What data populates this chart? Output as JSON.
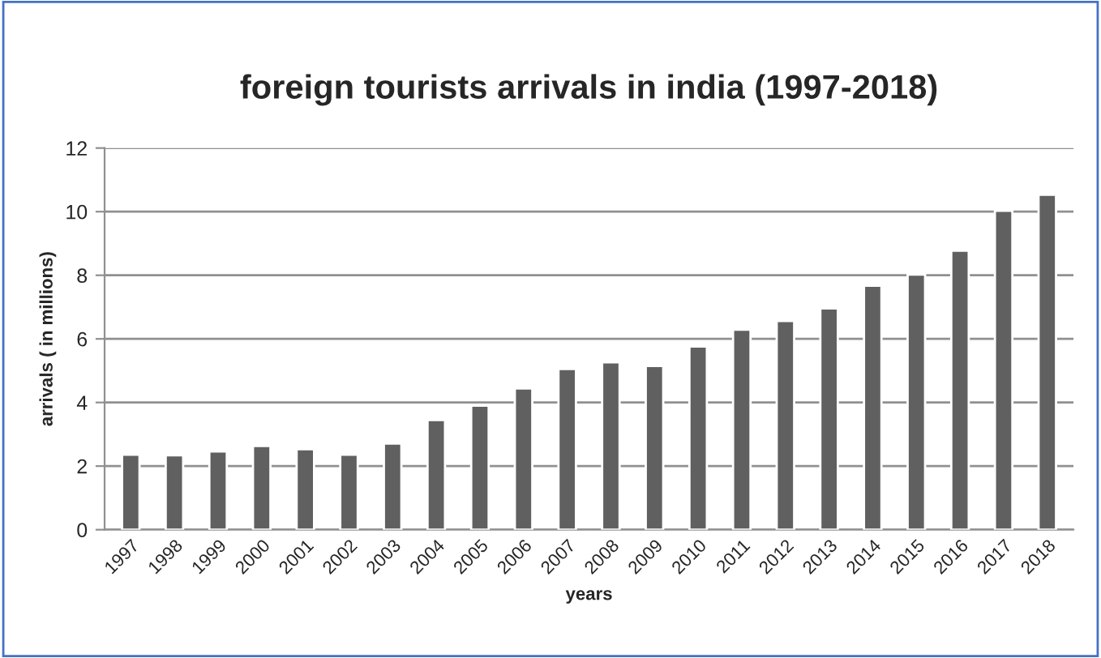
{
  "chart_data": {
    "type": "bar",
    "title": "foreign tourists arrivals in india (1997-2018)",
    "xlabel": "years",
    "ylabel": "arrivals ( in millions)",
    "categories": [
      "1997",
      "1998",
      "1999",
      "2000",
      "2001",
      "2002",
      "2003",
      "2004",
      "2005",
      "2006",
      "2007",
      "2008",
      "2009",
      "2010",
      "2011",
      "2012",
      "2013",
      "2014",
      "2015",
      "2016",
      "2017",
      "2018"
    ],
    "values": [
      2.36,
      2.34,
      2.46,
      2.63,
      2.53,
      2.36,
      2.71,
      3.45,
      3.9,
      4.44,
      5.05,
      5.26,
      5.15,
      5.76,
      6.29,
      6.56,
      6.96,
      7.67,
      8.02,
      8.77,
      10.03,
      10.53
    ],
    "color": "#606060",
    "ylim": [
      0,
      12
    ],
    "yticks": [
      0,
      2,
      4,
      6,
      8,
      10,
      12
    ],
    "grid": "y",
    "legend": false
  }
}
